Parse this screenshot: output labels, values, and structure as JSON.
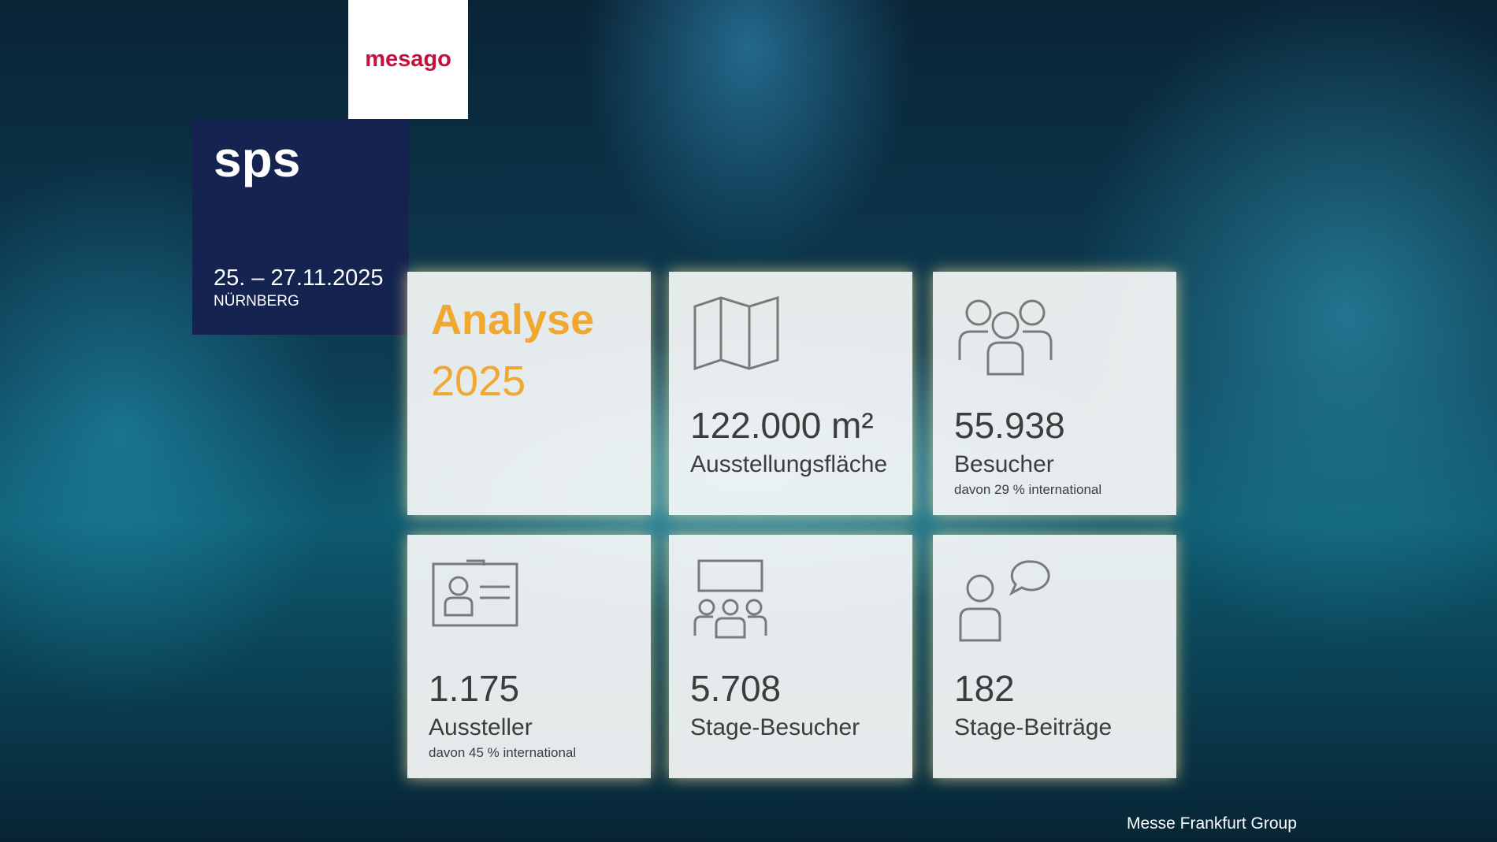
{
  "logo": "mesago",
  "brand": {
    "name": "sps",
    "date": "25. – 27.11.2025",
    "location": "NÜRNBERG"
  },
  "header": {
    "title": "Analyse",
    "year": "2025"
  },
  "tiles": [
    {
      "value": "122.000 m²",
      "label": "Ausstellungsfläche"
    },
    {
      "value": "55.938",
      "label": "Besucher",
      "note": "davon 29 % international"
    },
    {
      "value": "1.175",
      "label": "Aussteller",
      "note": "davon 45 % international"
    },
    {
      "value": "5.708",
      "label": "Stage-Besucher"
    },
    {
      "value": "182",
      "label": "Stage-Beiträge"
    }
  ],
  "footer": "Messe Frankfurt Group"
}
